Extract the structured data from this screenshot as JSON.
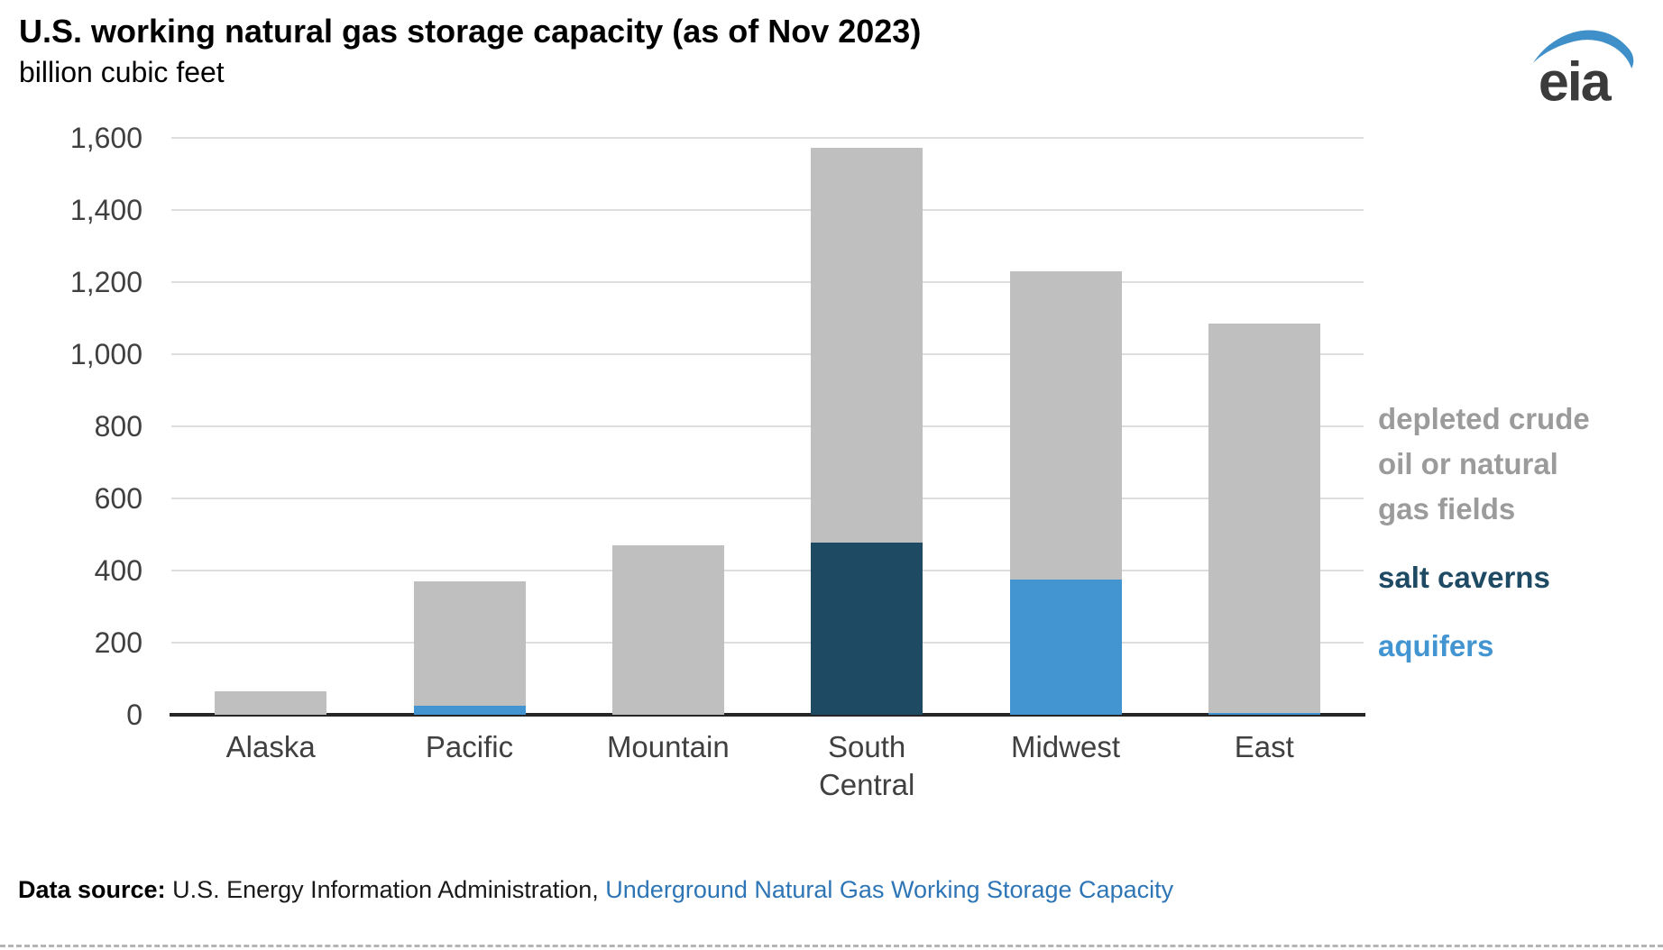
{
  "header": {
    "title": "U.S. working natural gas storage capacity (as of Nov 2023)",
    "subtitle": "billion cubic feet",
    "logo_text": "eia",
    "logo_accent_color": "#3F90C9"
  },
  "chart_data": {
    "type": "bar",
    "stacked": true,
    "title": "U.S. working natural gas storage capacity (as of Nov 2023)",
    "ylabel": "billion cubic feet",
    "categories": [
      "Alaska",
      "Pacific",
      "Mountain",
      "South Central",
      "Midwest",
      "East"
    ],
    "series": [
      {
        "name": "salt caverns",
        "color": "#1F4A64",
        "values": [
          0,
          0,
          0,
          478,
          0,
          0
        ]
      },
      {
        "name": "aquifers",
        "color": "#4295D1",
        "values": [
          0,
          25,
          0,
          0,
          375,
          5
        ]
      },
      {
        "name": "depleted crude oil or natural gas fields",
        "color": "#BFBFBF",
        "values": [
          65,
          344,
          471,
          1094,
          854,
          1080
        ]
      }
    ],
    "totals": [
      65,
      369,
      471,
      1572,
      1229,
      1085
    ],
    "ylim": [
      0,
      1600
    ],
    "ytick_step": 200,
    "yticklabels": [
      "0",
      "200",
      "400",
      "600",
      "800",
      "1,000",
      "1,200",
      "1,400",
      "1,600"
    ],
    "grid": true,
    "gridline_color": "#DDDDDD",
    "axis_color": "#262626",
    "legend_position": "right"
  },
  "legend": {
    "items": [
      {
        "label": "depleted crude oil or natural gas fields",
        "color": "#9B9B9B"
      },
      {
        "label": "salt caverns",
        "color": "#1F4A64"
      },
      {
        "label": "aquifers",
        "color": "#4295D1"
      }
    ]
  },
  "footer": {
    "prefix": "Data source:",
    "source": " U.S. Energy Information Administration, ",
    "link": "Underground Natural Gas Working Storage Capacity"
  }
}
